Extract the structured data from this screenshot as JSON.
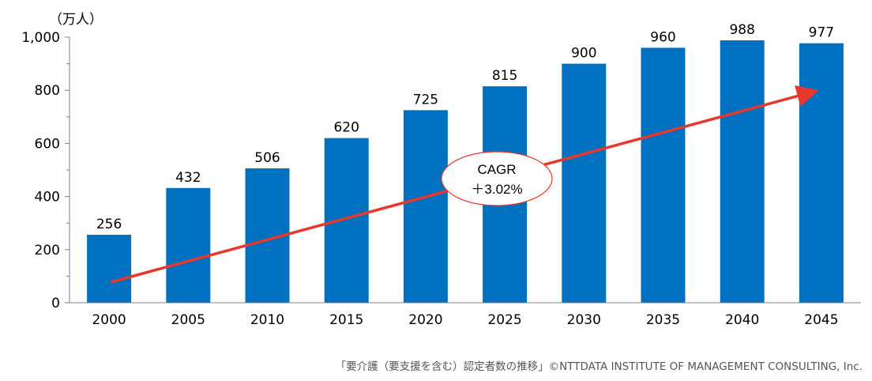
{
  "chart_data": {
    "type": "bar",
    "categories": [
      "2000",
      "2005",
      "2010",
      "2015",
      "2020",
      "2025",
      "2030",
      "2035",
      "2040",
      "2045"
    ],
    "values": [
      256,
      432,
      506,
      620,
      725,
      815,
      900,
      960,
      988,
      977
    ],
    "unit": "（万人）",
    "ylim": [
      0,
      1000
    ],
    "yticks": [
      0,
      200,
      400,
      600,
      800,
      1000
    ],
    "ytick_labels": [
      "0",
      "200",
      "400",
      "600",
      "800",
      "1,000"
    ],
    "bar_color": "#0070C0",
    "annotation": {
      "line1": "CAGR",
      "line2": "＋3.02%",
      "arrow_color": "#E8382B",
      "ellipse_stroke": "#E8382B"
    },
    "source": "「要介護（要支援を含む）認定者数の推移」©NTTDATA INSTITUTE OF MANAGEMENT CONSULTING, Inc."
  }
}
